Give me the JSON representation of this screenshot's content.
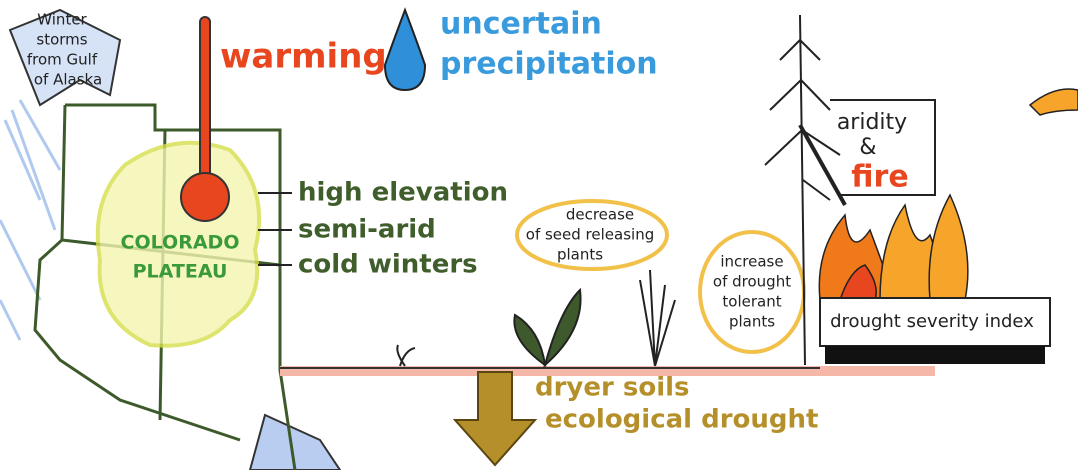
{
  "storms": [
    "Winter",
    "storms",
    "from Gulf",
    "of Alaska"
  ],
  "warming": "warming",
  "precipitation": [
    "uncertain",
    "precipitation"
  ],
  "plateau": [
    "COLORADO",
    "PLATEAU"
  ],
  "traits": [
    "high elevation",
    "semi-arid",
    "cold winters"
  ],
  "seed_plants": [
    "decrease",
    "of seed releasing",
    "plants"
  ],
  "tolerant_plants": [
    "increase",
    "of drought",
    "tolerant",
    "plants"
  ],
  "aridity": [
    "aridity",
    "&",
    "fire"
  ],
  "index": "drought severity index",
  "soils": [
    "dryer soils",
    "ecological drought"
  ]
}
